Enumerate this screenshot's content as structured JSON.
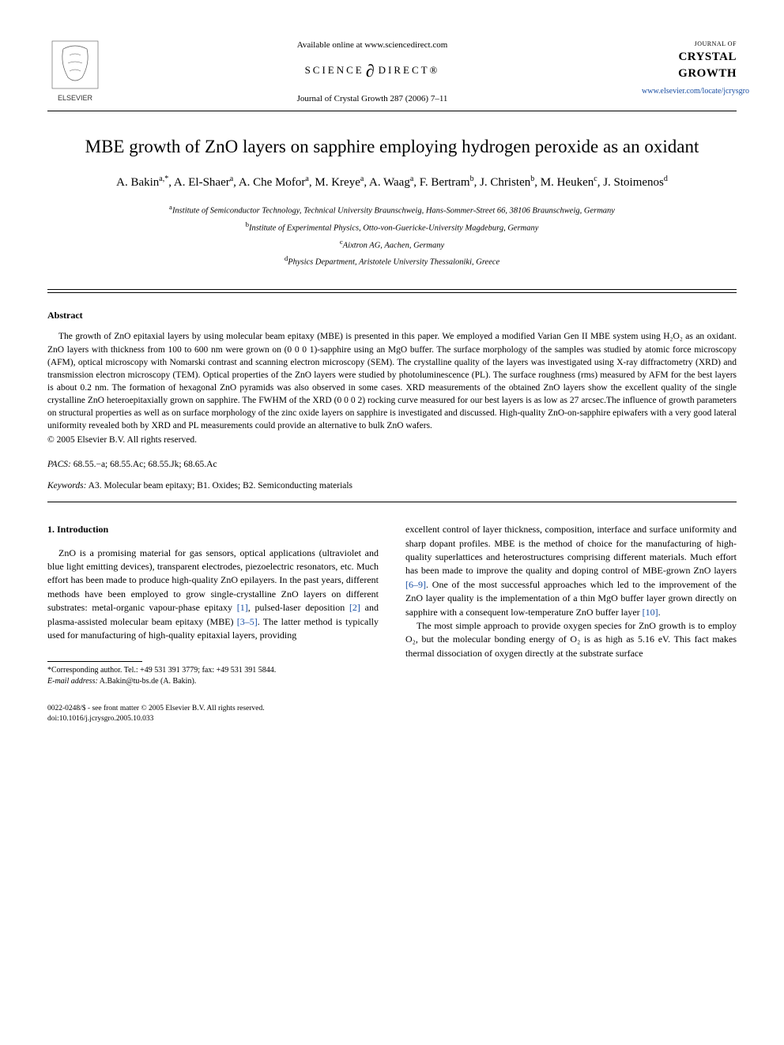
{
  "header": {
    "available_text": "Available online at www.sciencedirect.com",
    "science_direct": "SCIENCE",
    "science_direct2": "DIRECT®",
    "citation": "Journal of Crystal Growth 287 (2006) 7–11",
    "journal_small": "JOURNAL OF",
    "journal_large1": "CRYSTAL",
    "journal_large2": "GROWTH",
    "journal_link": "www.elsevier.com/locate/jcrysgro",
    "elsevier_label": "ELSEVIER"
  },
  "title": "MBE growth of ZnO layers on sapphire employing hydrogen peroxide as an oxidant",
  "authors_html": "A. Bakin<sup>a,*</sup>, A. El-Shaer<sup>a</sup>, A. Che Mofor<sup>a</sup>, M. Kreye<sup>a</sup>, A. Waag<sup>a</sup>, F. Bertram<sup>b</sup>, J. Christen<sup>b</sup>, M. Heuken<sup>c</sup>, J. Stoimenos<sup>d</sup>",
  "affiliations": [
    {
      "sup": "a",
      "text": "Institute of Semiconductor Technology, Technical University Braunschweig, Hans-Sommer-Street 66, 38106 Braunschweig, Germany"
    },
    {
      "sup": "b",
      "text": "Institute of Experimental Physics, Otto-von-Guericke-University Magdeburg, Germany"
    },
    {
      "sup": "c",
      "text": "Aixtron AG, Aachen, Germany"
    },
    {
      "sup": "d",
      "text": "Physics Department, Aristotele University Thessaloniki, Greece"
    }
  ],
  "abstract": {
    "heading": "Abstract",
    "body": "The growth of ZnO epitaxial layers by using molecular beam epitaxy (MBE) is presented in this paper. We employed a modified Varian Gen II MBE system using H₂O₂ as an oxidant. ZnO layers with thickness from 100 to 600 nm were grown on (0 0 0 1)-sapphire using an MgO buffer. The surface morphology of the samples was studied by atomic force microscopy (AFM), optical microscopy with Nomarski contrast and scanning electron microscopy (SEM). The crystalline quality of the layers was investigated using X-ray diffractometry (XRD) and transmission electron microscopy (TEM). Optical properties of the ZnO layers were studied by photoluminescence (PL). The surface roughness (rms) measured by AFM for the best layers is about 0.2 nm. The formation of hexagonal ZnO pyramids was also observed in some cases. XRD measurements of the obtained ZnO layers show the excellent quality of the single crystalline ZnO heteroepitaxially grown on sapphire. The FWHM of the XRD (0 0 0 2) rocking curve measured for our best layers is as low as 27 arcsec.The influence of growth parameters on structural properties as well as on surface morphology of the zinc oxide layers on sapphire is investigated and discussed. High-quality ZnO-on-sapphire epiwafers with a very good lateral uniformity revealed both by XRD and PL measurements could provide an alternative to bulk ZnO wafers.",
    "copyright": "© 2005 Elsevier B.V. All rights reserved."
  },
  "pacs": {
    "label": "PACS:",
    "value": " 68.55.−a; 68.55.Ac; 68.55.Jk; 68.65.Ac"
  },
  "keywords": {
    "label": "Keywords:",
    "value": " A3. Molecular beam epitaxy; B1. Oxides; B2. Semiconducting materials"
  },
  "intro": {
    "heading": "1. Introduction",
    "col1_p1_a": "ZnO is a promising material for gas sensors, optical applications (ultraviolet and blue light emitting devices), transparent electrodes, piezoelectric resonators, etc. Much effort has been made to produce high-quality ZnO epilayers. In the past years, different methods have been employed to grow single-crystalline ZnO layers on different substrates: metal-organic vapour-phase epitaxy ",
    "ref1": "[1]",
    "col1_p1_b": ", pulsed-laser deposition ",
    "ref2": "[2]",
    "col1_p1_c": " and plasma-assisted molecular beam epitaxy (MBE) ",
    "ref3": "[3–5]",
    "col1_p1_d": ". The latter method is typically used for manufacturing of high-quality epitaxial layers, providing",
    "col2_p1_a": "excellent control of layer thickness, composition, interface and surface uniformity and sharp dopant profiles. MBE is the method of choice for the manufacturing of high-quality superlattices and heterostructures comprising different materials. Much effort has been made to improve the quality and doping control of MBE-grown ZnO layers ",
    "ref4": "[6–9]",
    "col2_p1_b": ". One of the most successful approaches which led to the improvement of the ZnO layer quality is the implementation of a thin MgO buffer layer grown directly on sapphire with a consequent low-temperature ZnO buffer layer ",
    "ref5": "[10]",
    "col2_p1_c": ".",
    "col2_p2": "The most simple approach to provide oxygen species for ZnO growth is to employ O₂, but the molecular bonding energy of O₂ is as high as 5.16 eV. This fact makes thermal dissociation of oxygen directly at the substrate surface"
  },
  "footnote": {
    "corr": "*Corresponding author. Tel.: +49 531 391 3779; fax: +49 531 391 5844.",
    "email_label": "E-mail address:",
    "email": " A.Bakin@tu-bs.de (A. Bakin)."
  },
  "footer": {
    "line1": "0022-0248/$ - see front matter © 2005 Elsevier B.V. All rights reserved.",
    "line2": "doi:10.1016/j.jcrysgro.2005.10.033"
  },
  "colors": {
    "link": "#1a4fa3",
    "text": "#000000",
    "bg": "#ffffff"
  }
}
